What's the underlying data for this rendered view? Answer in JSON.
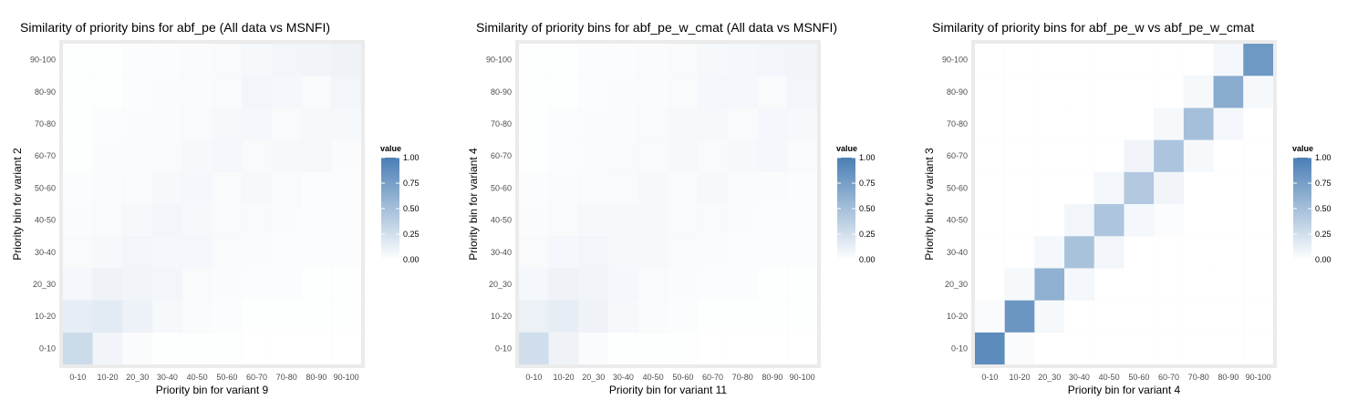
{
  "legend": {
    "title": "value",
    "ticks": [
      "0.00",
      "0.25",
      "0.50",
      "0.75",
      "1.00"
    ],
    "colors": {
      "low": "#ffffff",
      "high": "#4a7fb5"
    }
  },
  "colors": {
    "panel_background": "#ebebeb",
    "grid": "#ffffff"
  },
  "chart_data": [
    {
      "type": "heatmap",
      "title": "Similarity of priority bins for abf_pe (All data vs MSNFI)",
      "xlabel": "Priority bin for variant 9",
      "ylabel": "Priority bin for variant 2",
      "x_categories": [
        "0-10",
        "10-20",
        "20_30",
        "30-40",
        "40-50",
        "50-60",
        "60-70",
        "70-80",
        "80-90",
        "90-100"
      ],
      "y_categories": [
        "0-10",
        "10-20",
        "20_30",
        "30-40",
        "40-50",
        "50-60",
        "60-70",
        "70-80",
        "80-90",
        "90-100"
      ],
      "zlim": [
        0,
        1
      ],
      "values": [
        [
          0.28,
          0.08,
          0.03,
          0.01,
          0.01,
          0.01,
          0.0,
          0.0,
          0.0,
          0.0
        ],
        [
          0.14,
          0.16,
          0.1,
          0.05,
          0.03,
          0.02,
          0.01,
          0.01,
          0.01,
          0.01
        ],
        [
          0.06,
          0.09,
          0.08,
          0.07,
          0.04,
          0.03,
          0.02,
          0.02,
          0.01,
          0.01
        ],
        [
          0.04,
          0.05,
          0.07,
          0.06,
          0.06,
          0.04,
          0.03,
          0.02,
          0.02,
          0.02
        ],
        [
          0.03,
          0.04,
          0.05,
          0.07,
          0.05,
          0.04,
          0.04,
          0.03,
          0.02,
          0.02
        ],
        [
          0.02,
          0.03,
          0.04,
          0.05,
          0.06,
          0.04,
          0.05,
          0.04,
          0.02,
          0.02
        ],
        [
          0.01,
          0.03,
          0.03,
          0.04,
          0.05,
          0.06,
          0.04,
          0.05,
          0.05,
          0.03
        ],
        [
          0.01,
          0.02,
          0.03,
          0.03,
          0.04,
          0.05,
          0.06,
          0.04,
          0.05,
          0.05
        ],
        [
          0.01,
          0.01,
          0.02,
          0.03,
          0.03,
          0.04,
          0.07,
          0.06,
          0.04,
          0.07
        ],
        [
          0.01,
          0.01,
          0.02,
          0.02,
          0.03,
          0.04,
          0.05,
          0.07,
          0.08,
          0.09
        ]
      ]
    },
    {
      "type": "heatmap",
      "title": "Similarity of priority bins for abf_pe_w_cmat (All data vs MSNFI)",
      "xlabel": "Priority bin for variant 11",
      "ylabel": "Priority bin for variant 4",
      "x_categories": [
        "0-10",
        "10-20",
        "20_30",
        "30-40",
        "40-50",
        "50-60",
        "60-70",
        "70-80",
        "80-90",
        "90-100"
      ],
      "y_categories": [
        "0-10",
        "10-20",
        "20_30",
        "30-40",
        "40-50",
        "50-60",
        "60-70",
        "70-80",
        "80-90",
        "90-100"
      ],
      "zlim": [
        0,
        1
      ],
      "values": [
        [
          0.26,
          0.09,
          0.03,
          0.01,
          0.01,
          0.01,
          0.0,
          0.0,
          0.0,
          0.0
        ],
        [
          0.11,
          0.14,
          0.09,
          0.05,
          0.03,
          0.02,
          0.01,
          0.01,
          0.01,
          0.01
        ],
        [
          0.06,
          0.09,
          0.08,
          0.06,
          0.04,
          0.03,
          0.02,
          0.02,
          0.01,
          0.01
        ],
        [
          0.04,
          0.06,
          0.07,
          0.05,
          0.05,
          0.04,
          0.03,
          0.02,
          0.02,
          0.02
        ],
        [
          0.03,
          0.04,
          0.05,
          0.05,
          0.05,
          0.04,
          0.04,
          0.03,
          0.02,
          0.02
        ],
        [
          0.02,
          0.03,
          0.04,
          0.04,
          0.05,
          0.04,
          0.05,
          0.04,
          0.03,
          0.02
        ],
        [
          0.01,
          0.02,
          0.03,
          0.04,
          0.04,
          0.05,
          0.04,
          0.05,
          0.06,
          0.04
        ],
        [
          0.01,
          0.02,
          0.03,
          0.03,
          0.04,
          0.05,
          0.05,
          0.04,
          0.06,
          0.05
        ],
        [
          0.01,
          0.01,
          0.02,
          0.03,
          0.03,
          0.04,
          0.06,
          0.06,
          0.04,
          0.07
        ],
        [
          0.01,
          0.01,
          0.02,
          0.02,
          0.03,
          0.04,
          0.05,
          0.06,
          0.07,
          0.08
        ]
      ]
    },
    {
      "type": "heatmap",
      "title": "Similarity of priority bins for abf_pe_w vs abf_pe_w_cmat",
      "xlabel": "Priority bin for variant 4",
      "ylabel": "Priority bin for variant 3",
      "x_categories": [
        "0-10",
        "10-20",
        "20_30",
        "30-40",
        "40-50",
        "50-60",
        "60-70",
        "70-80",
        "80-90",
        "90-100"
      ],
      "y_categories": [
        "0-10",
        "10-20",
        "20_30",
        "30-40",
        "40-50",
        "50-60",
        "60-70",
        "70-80",
        "80-90",
        "90-100"
      ],
      "zlim": [
        0,
        1
      ],
      "values": [
        [
          0.9,
          0.03,
          0.0,
          0.0,
          0.0,
          0.0,
          0.0,
          0.0,
          0.0,
          0.0
        ],
        [
          0.03,
          0.82,
          0.05,
          0.0,
          0.0,
          0.0,
          0.0,
          0.0,
          0.0,
          0.0
        ],
        [
          0.0,
          0.05,
          0.62,
          0.06,
          0.0,
          0.0,
          0.0,
          0.0,
          0.0,
          0.0
        ],
        [
          0.0,
          0.0,
          0.06,
          0.48,
          0.07,
          0.0,
          0.0,
          0.0,
          0.0,
          0.0
        ],
        [
          0.0,
          0.0,
          0.0,
          0.07,
          0.45,
          0.06,
          0.02,
          0.0,
          0.0,
          0.0
        ],
        [
          0.0,
          0.0,
          0.0,
          0.0,
          0.06,
          0.42,
          0.08,
          0.0,
          0.0,
          0.0
        ],
        [
          0.0,
          0.0,
          0.0,
          0.0,
          0.0,
          0.08,
          0.46,
          0.05,
          0.0,
          0.0
        ],
        [
          0.0,
          0.0,
          0.0,
          0.0,
          0.0,
          0.0,
          0.05,
          0.5,
          0.06,
          0.0
        ],
        [
          0.0,
          0.0,
          0.0,
          0.0,
          0.0,
          0.0,
          0.0,
          0.05,
          0.65,
          0.05
        ],
        [
          0.0,
          0.0,
          0.0,
          0.0,
          0.0,
          0.0,
          0.0,
          0.0,
          0.06,
          0.8
        ]
      ]
    }
  ]
}
